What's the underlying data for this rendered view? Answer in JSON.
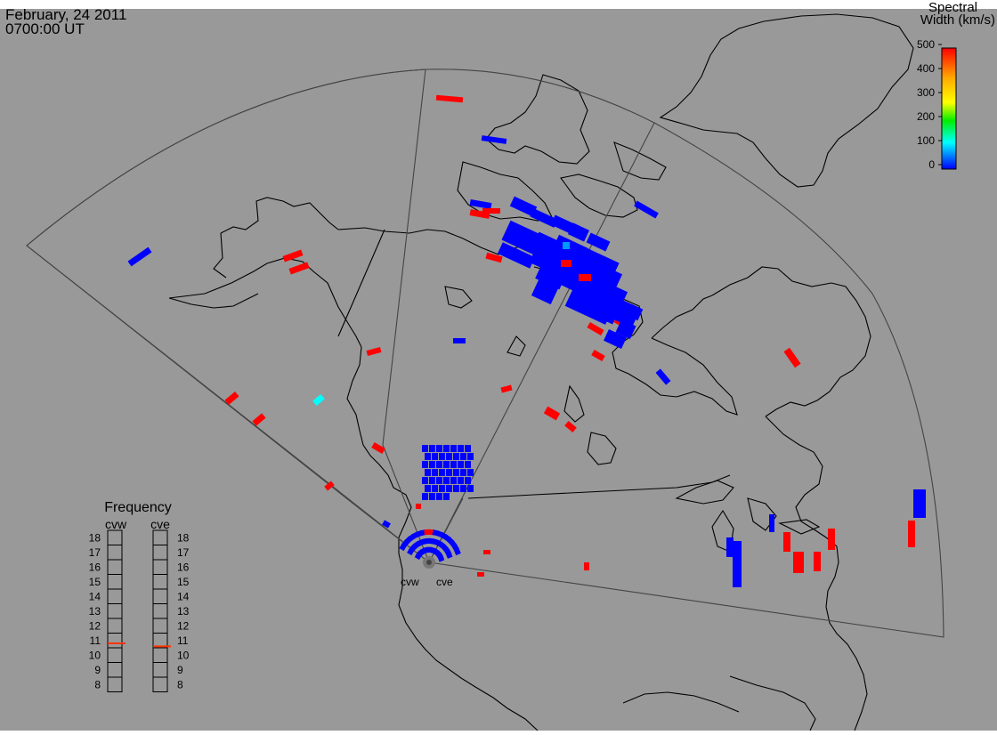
{
  "header": {
    "date": "February, 24 2011",
    "time": "0700:00 UT"
  },
  "legend": {
    "title_line1": "Spectral",
    "title_line2": "Width (km/s)",
    "ticks": [
      "500",
      "400",
      "300",
      "200",
      "100",
      "0"
    ],
    "colors": [
      "#ff0000",
      "#ffff00",
      "#00ff00",
      "#00ffff",
      "#0000ff"
    ]
  },
  "radars": [
    {
      "id": "cvw",
      "label": "cvw"
    },
    {
      "id": "cve",
      "label": "cve"
    }
  ],
  "frequency_panel": {
    "title": "Frequency",
    "radar_labels": [
      "cvw",
      "cve"
    ],
    "scale": [
      "18",
      "17",
      "16",
      "15",
      "14",
      "13",
      "12",
      "11",
      "10",
      "9",
      "8"
    ],
    "values_mhz": {
      "cvw": 10.8,
      "cve": 10.6
    },
    "marker_color": "#ff3300"
  },
  "map": {
    "background_color": "#999999",
    "coastline_color": "#000000",
    "fov_color": "#444444"
  }
}
